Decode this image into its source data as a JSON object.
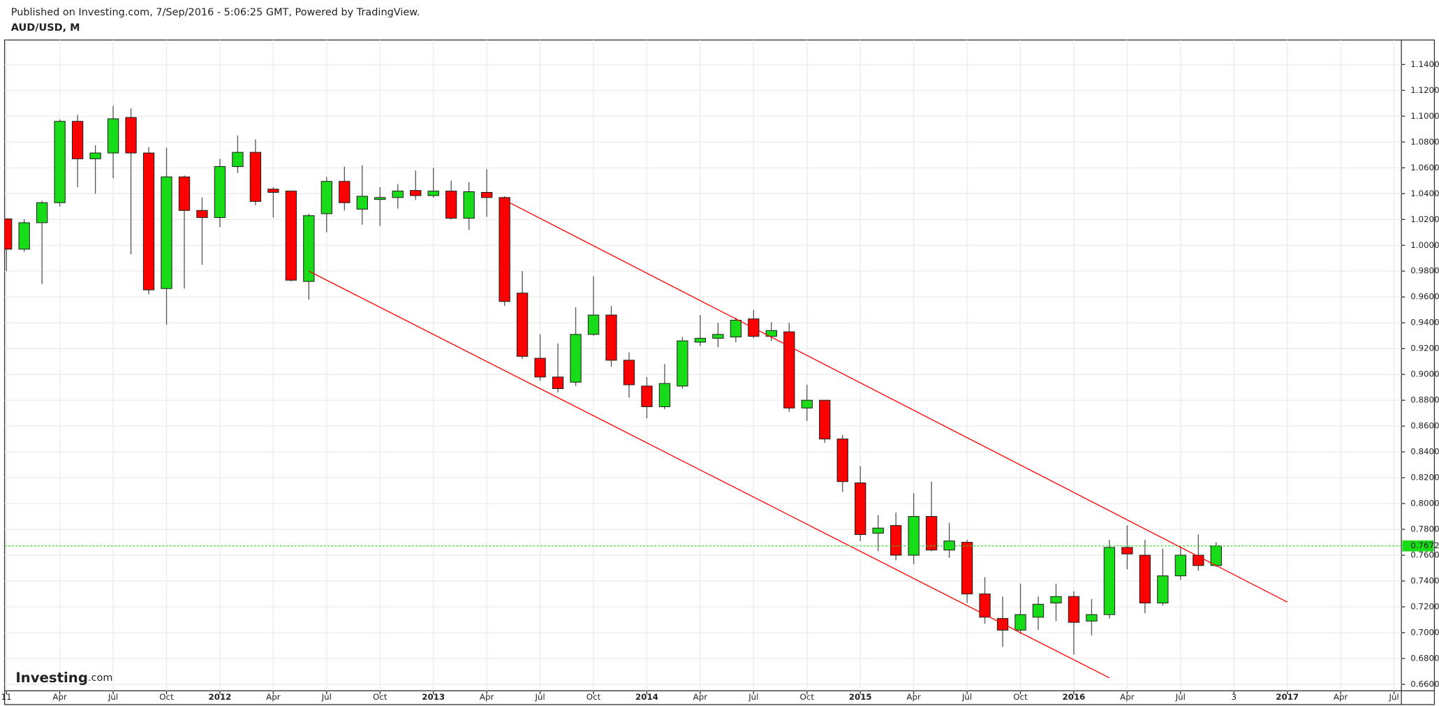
{
  "chart_data": {
    "type": "candlestick",
    "publisher": "Published on Investing.com, 7/Sep/2016 - 5:06:25 GMT, Powered by TradingView.",
    "title": "AUD/USD, M",
    "logo": {
      "brand": "Investing",
      "suffix": ".com"
    },
    "up_color": "#18dc18",
    "down_color": "#ff0000",
    "grid": true,
    "x": [
      "2011-01",
      "2011-02",
      "2011-03",
      "2011-04",
      "2011-05",
      "2011-06",
      "2011-07",
      "2011-08",
      "2011-09",
      "2011-10",
      "2011-11",
      "2011-12",
      "2012-01",
      "2012-02",
      "2012-03",
      "2012-04",
      "2012-05",
      "2012-06",
      "2012-07",
      "2012-08",
      "2012-09",
      "2012-10",
      "2012-11",
      "2012-12",
      "2013-01",
      "2013-02",
      "2013-03",
      "2013-04",
      "2013-05",
      "2013-06",
      "2013-07",
      "2013-08",
      "2013-09",
      "2013-10",
      "2013-11",
      "2013-12",
      "2014-01",
      "2014-02",
      "2014-03",
      "2014-04",
      "2014-05",
      "2014-06",
      "2014-07",
      "2014-08",
      "2014-09",
      "2014-10",
      "2014-11",
      "2014-12",
      "2015-01",
      "2015-02",
      "2015-03",
      "2015-04",
      "2015-05",
      "2015-06",
      "2015-07",
      "2015-08",
      "2015-09",
      "2015-10",
      "2015-11",
      "2015-12",
      "2016-01",
      "2016-02",
      "2016-03",
      "2016-04",
      "2016-05",
      "2016-06",
      "2016-07",
      "2016-08",
      "2016-09"
    ],
    "open": [
      1.0205,
      0.997,
      1.0175,
      1.033,
      1.096,
      1.067,
      1.0715,
      1.099,
      1.0715,
      0.9665,
      1.053,
      1.027,
      1.0215,
      1.061,
      1.072,
      1.0435,
      1.042,
      0.972,
      1.0245,
      1.0495,
      1.028,
      1.0355,
      1.037,
      1.0425,
      1.0385,
      1.042,
      1.021,
      1.041,
      1.037,
      0.963,
      0.9125,
      0.898,
      0.894,
      0.931,
      0.946,
      0.911,
      0.891,
      0.875,
      0.891,
      0.925,
      0.928,
      0.929,
      0.943,
      0.9295,
      0.933,
      0.874,
      0.88,
      0.85,
      0.816,
      0.777,
      0.783,
      0.76,
      0.79,
      0.764,
      0.77,
      0.73,
      0.711,
      0.702,
      0.712,
      0.723,
      0.728,
      0.709,
      0.714,
      0.766,
      0.76,
      0.723,
      0.744,
      0.76,
      0.752
    ],
    "high": [
      1.0205,
      1.02,
      1.0345,
      1.0975,
      1.101,
      1.0775,
      1.108,
      1.106,
      1.076,
      1.0755,
      1.054,
      1.037,
      1.067,
      1.085,
      1.082,
      1.045,
      1.042,
      1.0245,
      1.053,
      1.061,
      1.062,
      1.045,
      1.0475,
      1.058,
      1.06,
      1.05,
      1.049,
      1.059,
      1.038,
      0.98,
      0.931,
      0.924,
      0.952,
      0.976,
      0.953,
      0.917,
      0.898,
      0.908,
      0.929,
      0.946,
      0.94,
      0.944,
      0.95,
      0.9405,
      0.94,
      0.892,
      0.88,
      0.853,
      0.829,
      0.791,
      0.793,
      0.808,
      0.817,
      0.785,
      0.772,
      0.743,
      0.728,
      0.738,
      0.728,
      0.738,
      0.732,
      0.726,
      0.772,
      0.783,
      0.772,
      0.765,
      0.767,
      0.776,
      0.77
    ],
    "low": [
      0.98,
      0.995,
      0.97,
      1.03,
      1.045,
      1.04,
      1.052,
      0.993,
      0.962,
      0.9385,
      0.9665,
      0.985,
      1.014,
      1.056,
      1.031,
      1.0215,
      0.972,
      0.958,
      1.01,
      1.027,
      1.016,
      1.015,
      1.0285,
      1.035,
      1.037,
      1.02,
      1.012,
      1.022,
      0.953,
      0.912,
      0.895,
      0.886,
      0.891,
      0.93,
      0.906,
      0.882,
      0.866,
      0.873,
      0.889,
      0.922,
      0.921,
      0.925,
      0.928,
      0.926,
      0.871,
      0.864,
      0.847,
      0.809,
      0.771,
      0.763,
      0.756,
      0.753,
      0.763,
      0.758,
      0.723,
      0.707,
      0.689,
      0.699,
      0.702,
      0.709,
      0.683,
      0.698,
      0.711,
      0.749,
      0.715,
      0.721,
      0.741,
      0.748,
      0.751
    ],
    "close": [
      0.997,
      1.0175,
      1.033,
      1.096,
      1.067,
      1.0715,
      1.098,
      1.0715,
      0.9655,
      1.053,
      1.027,
      1.0215,
      1.061,
      1.072,
      1.034,
      1.041,
      0.973,
      1.023,
      1.0495,
      1.033,
      1.038,
      1.037,
      1.042,
      1.0385,
      1.042,
      1.021,
      1.0415,
      1.037,
      0.9565,
      0.914,
      0.898,
      0.889,
      0.931,
      0.946,
      0.911,
      0.892,
      0.875,
      0.893,
      0.926,
      0.928,
      0.931,
      0.942,
      0.9295,
      0.934,
      0.874,
      0.88,
      0.85,
      0.817,
      0.776,
      0.781,
      0.76,
      0.79,
      0.764,
      0.771,
      0.73,
      0.712,
      0.702,
      0.714,
      0.722,
      0.728,
      0.708,
      0.714,
      0.766,
      0.761,
      0.723,
      0.744,
      0.76,
      0.752,
      0.7672
    ],
    "last_price": 0.7672,
    "last_price_color": "#18dc18",
    "trendlines": [
      {
        "color": "#ff0000",
        "x": [
          "2013-05",
          "2017-01"
        ],
        "values": [
          1.035,
          0.7237
        ]
      },
      {
        "color": "#ff0000",
        "x": [
          "2012-06",
          "2016-03"
        ],
        "values": [
          0.98,
          0.665
        ]
      }
    ],
    "xlim": [
      "2011-01",
      "2017-07"
    ],
    "xticks": [
      {
        "value": "2011-01",
        "label": "11"
      },
      {
        "value": "2011-04",
        "label": "Apr"
      },
      {
        "value": "2011-07",
        "label": "Jul"
      },
      {
        "value": "2011-10",
        "label": "Oct"
      },
      {
        "value": "2012-01",
        "label": "2012"
      },
      {
        "value": "2012-04",
        "label": "Apr"
      },
      {
        "value": "2012-07",
        "label": "Jul"
      },
      {
        "value": "2012-10",
        "label": "Oct"
      },
      {
        "value": "2013-01",
        "label": "2013"
      },
      {
        "value": "2013-04",
        "label": "Apr"
      },
      {
        "value": "2013-07",
        "label": "Jul"
      },
      {
        "value": "2013-10",
        "label": "Oct"
      },
      {
        "value": "2014-01",
        "label": "2014"
      },
      {
        "value": "2014-04",
        "label": "Apr"
      },
      {
        "value": "2014-07",
        "label": "Jul"
      },
      {
        "value": "2014-10",
        "label": "Oct"
      },
      {
        "value": "2015-01",
        "label": "2015"
      },
      {
        "value": "2015-04",
        "label": "Apr"
      },
      {
        "value": "2015-07",
        "label": "Jul"
      },
      {
        "value": "2015-10",
        "label": "Oct"
      },
      {
        "value": "2016-01",
        "label": "2016"
      },
      {
        "value": "2016-04",
        "label": "Apr"
      },
      {
        "value": "2016-07",
        "label": "Jul"
      },
      {
        "value": "2016-10",
        "label": "3"
      },
      {
        "value": "2017-01",
        "label": "2017"
      },
      {
        "value": "2017-04",
        "label": "Apr"
      },
      {
        "value": "2017-07",
        "label": "Jul"
      }
    ],
    "ylim": [
      0.655,
      1.159
    ],
    "yticks": [
      {
        "value": 0.66,
        "label": "0.6600"
      },
      {
        "value": 0.68,
        "label": "0.6800"
      },
      {
        "value": 0.7,
        "label": "0.7000"
      },
      {
        "value": 0.72,
        "label": "0.7200"
      },
      {
        "value": 0.74,
        "label": "0.7400"
      },
      {
        "value": 0.76,
        "label": "0.7600"
      },
      {
        "value": 0.78,
        "label": "0.7800"
      },
      {
        "value": 0.8,
        "label": "0.8000"
      },
      {
        "value": 0.82,
        "label": "0.8200"
      },
      {
        "value": 0.84,
        "label": "0.8400"
      },
      {
        "value": 0.86,
        "label": "0.8600"
      },
      {
        "value": 0.88,
        "label": "0.8800"
      },
      {
        "value": 0.9,
        "label": "0.9000"
      },
      {
        "value": 0.92,
        "label": "0.9200"
      },
      {
        "value": 0.94,
        "label": "0.9400"
      },
      {
        "value": 0.96,
        "label": "0.9600"
      },
      {
        "value": 0.98,
        "label": "0.9800"
      },
      {
        "value": 1.0,
        "label": "1.0000"
      },
      {
        "value": 1.02,
        "label": "1.0200"
      },
      {
        "value": 1.04,
        "label": "1.0400"
      },
      {
        "value": 1.06,
        "label": "1.0600"
      },
      {
        "value": 1.08,
        "label": "1.0800"
      },
      {
        "value": 1.1,
        "label": "1.1000"
      },
      {
        "value": 1.12,
        "label": "1.1200"
      },
      {
        "value": 1.14,
        "label": "1.1400"
      }
    ]
  }
}
